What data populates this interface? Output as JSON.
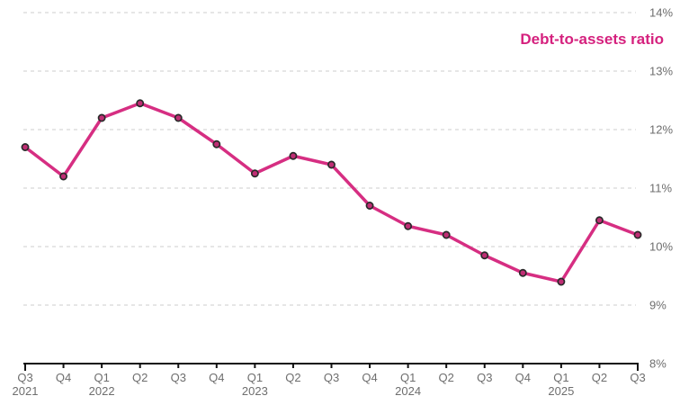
{
  "chart_data": {
    "type": "line",
    "title": "Debt-to-assets ratio",
    "unit": "%",
    "categories": [
      "Q3 2021",
      "Q4 2021",
      "Q1 2022",
      "Q2 2022",
      "Q3 2022",
      "Q4 2022",
      "Q1 2023",
      "Q2 2023",
      "Q3 2023",
      "Q4 2023",
      "Q1 2024",
      "Q2 2024",
      "Q3 2024",
      "Q4 2024",
      "Q1 2025",
      "Q2 2025",
      "Q3 2025"
    ],
    "x_quarter_labels": [
      "Q3",
      "Q4",
      "Q1",
      "Q2",
      "Q3",
      "Q4",
      "Q1",
      "Q2",
      "Q3",
      "Q4",
      "Q1",
      "Q2",
      "Q3",
      "Q4",
      "Q1",
      "Q2",
      "Q3"
    ],
    "x_year_labels": [
      {
        "index": 0,
        "label": "2021"
      },
      {
        "index": 2,
        "label": "2022"
      },
      {
        "index": 6,
        "label": "2023"
      },
      {
        "index": 10,
        "label": "2024"
      },
      {
        "index": 14,
        "label": "2025"
      }
    ],
    "values": [
      11.7,
      11.2,
      12.2,
      12.45,
      12.2,
      11.75,
      11.25,
      11.55,
      11.4,
      10.7,
      10.35,
      10.2,
      9.85,
      9.55,
      9.4,
      10.45,
      10.2
    ],
    "ylim": [
      8,
      14
    ],
    "y_tick_step": 1,
    "y_tick_labels": [
      "14%",
      "13%",
      "12%",
      "11%",
      "10%",
      "9%",
      "8%"
    ],
    "grid": "horizontal-dashed",
    "legend_position": "top-right",
    "xlabel": "",
    "ylabel": ""
  },
  "colors": {
    "line": "#d62e82",
    "point_fill": "#bf2e74",
    "point_stroke": "#2a2a2a",
    "axis": "#111111",
    "grid_line": "#cccccc",
    "tick_label": "#6e6e6e",
    "legend_text": "#d5217e",
    "background": "#ffffff"
  }
}
